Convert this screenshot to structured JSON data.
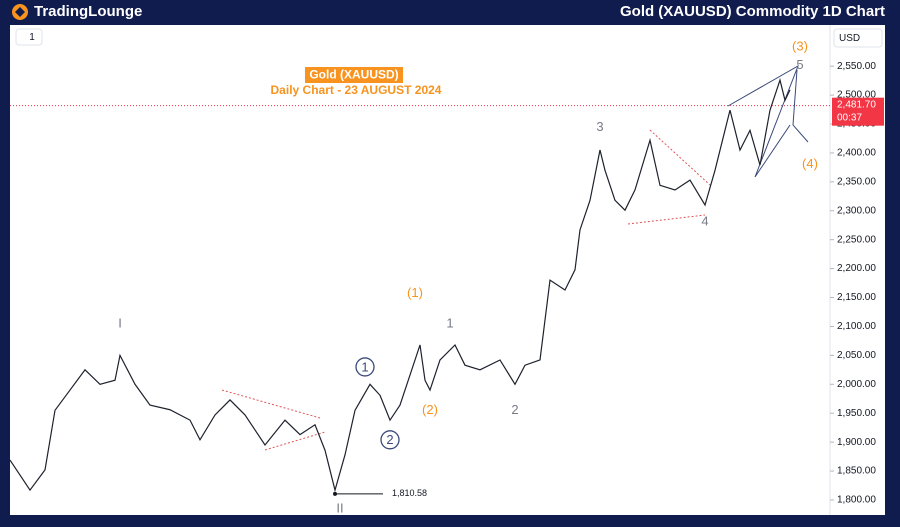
{
  "header": {
    "brand": "TradingLounge",
    "title": "Gold (XAUUSD) Commodity 1D Chart"
  },
  "toolbar": {
    "interval": "1",
    "currency": "USD"
  },
  "chart_data": {
    "type": "line",
    "title": "Gold (XAUUSD)",
    "subtitle": "Daily Chart - 23 AUGUST 2024",
    "x": [
      0,
      4,
      7,
      9,
      12,
      15,
      18,
      21,
      22,
      25,
      28,
      32,
      36,
      38,
      41,
      44,
      47,
      51,
      55,
      58,
      61,
      63,
      65,
      67,
      69,
      72,
      74,
      76,
      78,
      80,
      82,
      83,
      84,
      86,
      89,
      91,
      94,
      98,
      101,
      103,
      106,
      108,
      111,
      113,
      114,
      116,
      118,
      119,
      121,
      123,
      125,
      128,
      130,
      133,
      136,
      139,
      141,
      144,
      146,
      148,
      150,
      152,
      154,
      155,
      156
    ],
    "series": [
      {
        "name": "XAUUSD",
        "color": "#1e222d",
        "values": [
          1869,
          1817,
          1852,
          1955,
          1990,
          2025,
          2000,
          2007,
          2050,
          2000,
          1964,
          1956,
          1938,
          1904,
          1947,
          1973,
          1947,
          1895,
          1938,
          1913,
          1930,
          1886,
          1817,
          1878,
          1955,
          2000,
          1981,
          1938,
          1964,
          2016,
          2068,
          2007,
          1990,
          2042,
          2068,
          2033,
          2025,
          2042,
          2000,
          2033,
          2042,
          2180,
          2163,
          2198,
          2267,
          2318,
          2405,
          2370,
          2318,
          2301,
          2336,
          2422,
          2344,
          2336,
          2353,
          2310,
          2370,
          2474,
          2405,
          2439,
          2379,
          2474,
          2526,
          2491,
          2509
        ]
      }
    ],
    "xlim": [
      0,
      164
    ],
    "ylim": [
      1774,
      2616
    ],
    "yticks": [
      {
        "value": 1800,
        "label": "1,800.00"
      },
      {
        "value": 1850,
        "label": "1,850.00"
      },
      {
        "value": 1900,
        "label": "1,900.00"
      },
      {
        "value": 1950,
        "label": "1,950.00"
      },
      {
        "value": 2000,
        "label": "2,000.00"
      },
      {
        "value": 2050,
        "label": "2,050.00"
      },
      {
        "value": 2100,
        "label": "2,100.00"
      },
      {
        "value": 2150,
        "label": "2,150.00"
      },
      {
        "value": 2200,
        "label": "2,200.00"
      },
      {
        "value": 2250,
        "label": "2,250.00"
      },
      {
        "value": 2300,
        "label": "2,300.00"
      },
      {
        "value": 2350,
        "label": "2,350.00"
      },
      {
        "value": 2400,
        "label": "2,400.00"
      },
      {
        "value": 2450,
        "label": "2,450.00"
      },
      {
        "value": 2500,
        "label": "2,500.00"
      },
      {
        "value": 2550,
        "label": "2,550.00"
      }
    ],
    "current_price": {
      "value": 2481.7,
      "label": "2,481.70",
      "timer": "00:37",
      "color": "#f23645"
    },
    "low_marker": {
      "x": 65,
      "value": 1810.58,
      "label": "1,810.58"
    },
    "annotations": [
      {
        "text": "I",
        "x": 22,
        "y": 2106,
        "color": "#787b86"
      },
      {
        "text": "II",
        "x": 66,
        "y": 1786,
        "color": "#787b86"
      },
      {
        "text": "(1)",
        "x": 81,
        "y": 2159,
        "color": "#f7931e"
      },
      {
        "text": "(2)",
        "x": 84,
        "y": 1956,
        "color": "#f7931e"
      },
      {
        "text": "1",
        "x": 71,
        "y": 2030,
        "color": "#3b4a7a",
        "circled": true
      },
      {
        "text": "2",
        "x": 76,
        "y": 1904,
        "color": "#3b4a7a",
        "circled": true
      },
      {
        "text": "1",
        "x": 88,
        "y": 2106,
        "color": "#787b86"
      },
      {
        "text": "2",
        "x": 101,
        "y": 1956,
        "color": "#787b86"
      },
      {
        "text": "3",
        "x": 118,
        "y": 2446,
        "color": "#787b86"
      },
      {
        "text": "4",
        "x": 139,
        "y": 2282,
        "color": "#787b86"
      },
      {
        "text": "5",
        "x": 158,
        "y": 2553,
        "color": "#787b86"
      },
      {
        "text": "(3)",
        "x": 158,
        "y": 2585,
        "color": "#f7931e"
      },
      {
        "text": "(4)",
        "x": 160,
        "y": 2382,
        "color": "#f7931e"
      }
    ]
  }
}
